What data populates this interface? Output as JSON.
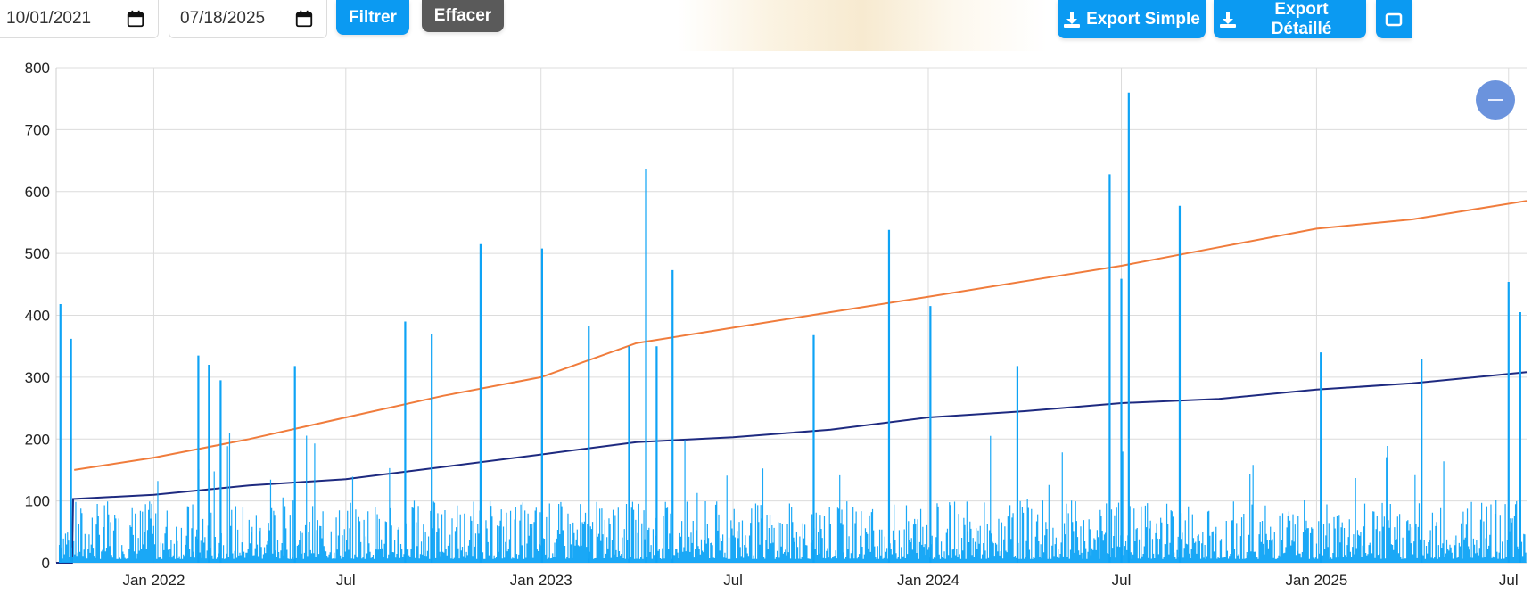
{
  "toolbar": {
    "date_from": "10/01/2021",
    "date_to": "07/18/2025",
    "filter_label": "Filtrer",
    "clear_label": "Effacer",
    "export_simple_label": "Export Simple",
    "export_detailed_label": "Export Détaillé",
    "download_icon": "download-icon",
    "calendar_icon": "calendar-icon",
    "accent_color": "#0b9af2",
    "clear_color": "#5a5a5a"
  },
  "zoom_button": {
    "icon": "minus-icon",
    "color": "#6b93dd"
  },
  "chart_data": {
    "type": "line",
    "title": "",
    "xlabel": "",
    "ylabel": "",
    "x_range": [
      "2021-10-01",
      "2025-07-18"
    ],
    "ylim": [
      0,
      800
    ],
    "yticks": [
      0,
      100,
      200,
      300,
      400,
      500,
      600,
      700,
      800
    ],
    "xticks": [
      {
        "date": "2022-01-01",
        "label": "Jan 2022"
      },
      {
        "date": "2022-07-01",
        "label": "Jul"
      },
      {
        "date": "2023-01-01",
        "label": "Jan 2023"
      },
      {
        "date": "2023-07-01",
        "label": "Jul"
      },
      {
        "date": "2024-01-01",
        "label": "Jan 2024"
      },
      {
        "date": "2024-07-01",
        "label": "Jul"
      },
      {
        "date": "2025-01-01",
        "label": "Jan 2025"
      },
      {
        "date": "2025-07-01",
        "label": "Jul"
      }
    ],
    "grid": true,
    "legend": "none",
    "series": [
      {
        "color": "#f07c3c",
        "style": "line",
        "x": [
          "2021-10-18",
          "2022-01-01",
          "2022-04-01",
          "2022-07-01",
          "2022-10-01",
          "2023-01-01",
          "2023-04-01",
          "2023-07-01",
          "2023-10-01",
          "2024-01-01",
          "2024-04-01",
          "2024-07-01",
          "2024-10-01",
          "2025-01-01",
          "2025-04-01",
          "2025-07-18"
        ],
        "y": [
          150,
          170,
          200,
          235,
          270,
          300,
          355,
          380,
          405,
          430,
          455,
          480,
          510,
          540,
          555,
          585
        ]
      },
      {
        "color": "#1e2a80",
        "style": "line",
        "x": [
          "2021-10-01",
          "2021-10-16",
          "2021-10-17",
          "2022-01-01",
          "2022-04-01",
          "2022-07-01",
          "2022-10-01",
          "2023-01-01",
          "2023-04-01",
          "2023-07-01",
          "2023-10-01",
          "2024-01-01",
          "2024-04-01",
          "2024-07-01",
          "2024-10-01",
          "2025-01-01",
          "2025-04-01",
          "2025-07-18"
        ],
        "y": [
          0,
          0,
          103,
          110,
          125,
          135,
          155,
          175,
          195,
          203,
          215,
          235,
          245,
          258,
          265,
          280,
          290,
          308
        ]
      },
      {
        "color": "#0ea3f5",
        "style": "spikes",
        "x": [
          "2021-10-05",
          "2021-10-15",
          "2022-02-12",
          "2022-02-22",
          "2022-03-05",
          "2022-05-14",
          "2022-08-26",
          "2022-09-20",
          "2022-11-05",
          "2023-01-02",
          "2023-02-15",
          "2023-03-25",
          "2023-04-10",
          "2023-04-20",
          "2023-05-05",
          "2023-09-15",
          "2023-11-25",
          "2024-01-03",
          "2024-03-25",
          "2024-06-20",
          "2024-07-01",
          "2024-07-08",
          "2024-08-25",
          "2025-01-05",
          "2025-04-10",
          "2025-07-01",
          "2025-07-12"
        ],
        "y": [
          418,
          362,
          335,
          320,
          295,
          318,
          390,
          370,
          515,
          508,
          383,
          350,
          637,
          350,
          473,
          368,
          538,
          415,
          318,
          628,
          459,
          760,
          577,
          340,
          330,
          454,
          405
        ]
      }
    ]
  }
}
